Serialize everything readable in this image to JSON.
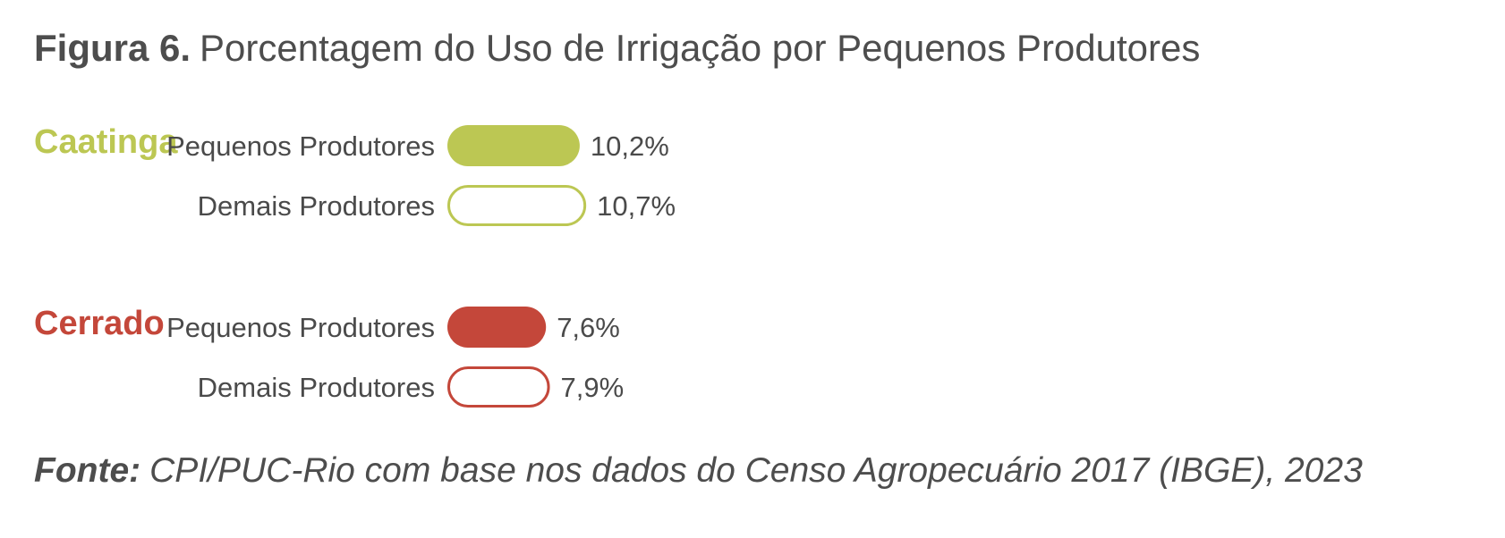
{
  "title": {
    "prefix": "Figura 6.",
    "text": "Porcentagem do Uso de Irrigação por Pequenos Produtores"
  },
  "source": {
    "prefix": "Fonte:",
    "text": "CPI/PUC-Rio com base nos dados do Censo Agropecuário 2017 (IBGE), 2023"
  },
  "chart_data": {
    "type": "bar",
    "orientation": "horizontal",
    "unit": "%",
    "groups": [
      {
        "name": "Caatinga",
        "color": "#bcc753",
        "bars": [
          {
            "label": "Pequenos Produtores",
            "value": 10.2,
            "value_label": "10,2%",
            "filled": true
          },
          {
            "label": "Demais Produtores",
            "value": 10.7,
            "value_label": "10,7%",
            "filled": false
          }
        ]
      },
      {
        "name": "Cerrado",
        "color": "#c4473a",
        "bars": [
          {
            "label": "Pequenos Produtores",
            "value": 7.6,
            "value_label": "7,6%",
            "filled": true
          },
          {
            "label": "Demais Produtores",
            "value": 7.9,
            "value_label": "7,9%",
            "filled": false
          }
        ]
      }
    ]
  }
}
